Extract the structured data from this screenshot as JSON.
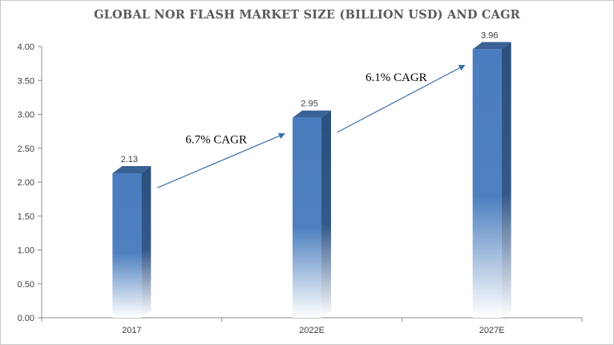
{
  "chart_data": {
    "type": "bar",
    "title": "GLOBAL NOR FLASH MARKET SIZE (BILLION USD) AND CAGR",
    "categories": [
      "2017",
      "2022E",
      "2027E"
    ],
    "values": [
      2.13,
      2.95,
      3.96
    ],
    "data_labels": [
      "2.13",
      "2.95",
      "3.96"
    ],
    "ylim": [
      0,
      4
    ],
    "yticks": [
      "0.00",
      "0.50",
      "1.00",
      "1.50",
      "2.00",
      "2.50",
      "3.00",
      "3.50",
      "4.00"
    ],
    "xlabel": "",
    "ylabel": "",
    "grid": false,
    "legend": "none",
    "colors": {
      "bar_top": "#4a7dbf",
      "bar_side": "#2c4f7c",
      "bar_cap": "#3a6296",
      "arrow": "#3a6ea8",
      "axis": "#8c8c8c"
    },
    "annotations": [
      {
        "text": "6.7% CAGR",
        "from_category": "2017",
        "to_category": "2022E"
      },
      {
        "text": "6.1% CAGR",
        "from_category": "2022E",
        "to_category": "2027E"
      }
    ]
  }
}
